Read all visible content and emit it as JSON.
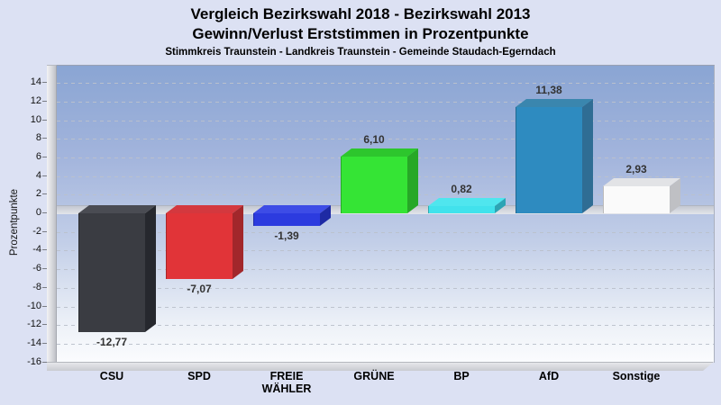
{
  "header": {
    "title_line1": "Vergleich Bezirkswahl 2018 - Bezirkswahl 2013",
    "title_line2": "Gewinn/Verlust Erststimmen in Prozentpunkte",
    "subtitle": "Stimmkreis Traunstein - Landkreis Traunstein - Gemeinde Staudach-Egerndach"
  },
  "chart_data": {
    "type": "bar",
    "style": "3d-column",
    "title": "Vergleich Bezirkswahl 2018 - Bezirkswahl 2013",
    "subtitle": "Gewinn/Verlust Erststimmen in Prozentpunkte",
    "caption": "Stimmkreis Traunstein - Landkreis Traunstein - Gemeinde Staudach-Egerndach",
    "ylabel": "Prozentpunkte",
    "ylim": [
      -16.5,
      15.8
    ],
    "yticks": [
      14,
      12,
      10,
      8,
      6,
      4,
      2,
      0,
      -2,
      -4,
      -6,
      -8,
      -10,
      -12,
      -14,
      -16
    ],
    "grid": true,
    "legend": false,
    "categories": [
      "CSU",
      "SPD",
      "FREIE\nWÄHLER",
      "GRÜNE",
      "BP",
      "AfD",
      "Sonstige"
    ],
    "values": [
      -12.77,
      -7.07,
      -1.39,
      6.1,
      0.82,
      11.38,
      2.93
    ],
    "value_labels": [
      "-12,77",
      "-7,07",
      "-1,39",
      "6,10",
      "0,82",
      "11,38",
      "2,93"
    ],
    "bar_colors": [
      {
        "party": "CSU",
        "front": "#3a3c42",
        "side": "#26282e",
        "top": "#4a4c53"
      },
      {
        "party": "SPD",
        "front": "#e13438",
        "side": "#a2272b",
        "top": "#d4383e"
      },
      {
        "party": "FREIE WÄHLER",
        "front": "#2c3bdf",
        "side": "#1e2aa4",
        "top": "#3d4ce6"
      },
      {
        "party": "GRÜNE",
        "front": "#35e435",
        "side": "#27a827",
        "top": "#2dc62d"
      },
      {
        "party": "BP",
        "front": "#41e2ec",
        "side": "#2da4b4",
        "top": "#4fe6ee"
      },
      {
        "party": "AfD",
        "front": "#2e8bc0",
        "side": "#2f6d94",
        "top": "#3a86ae"
      },
      {
        "party": "Sonstige",
        "front": "#fafafa",
        "side": "#bfc0c4",
        "top": "#e2e3e6"
      }
    ],
    "background": {
      "outer": "#dce1f3",
      "plot_gradient_top": "#8aa5d3",
      "plot_gradient_bottom": "#fbfcfe",
      "wall_floor": "#d5d6db"
    }
  }
}
